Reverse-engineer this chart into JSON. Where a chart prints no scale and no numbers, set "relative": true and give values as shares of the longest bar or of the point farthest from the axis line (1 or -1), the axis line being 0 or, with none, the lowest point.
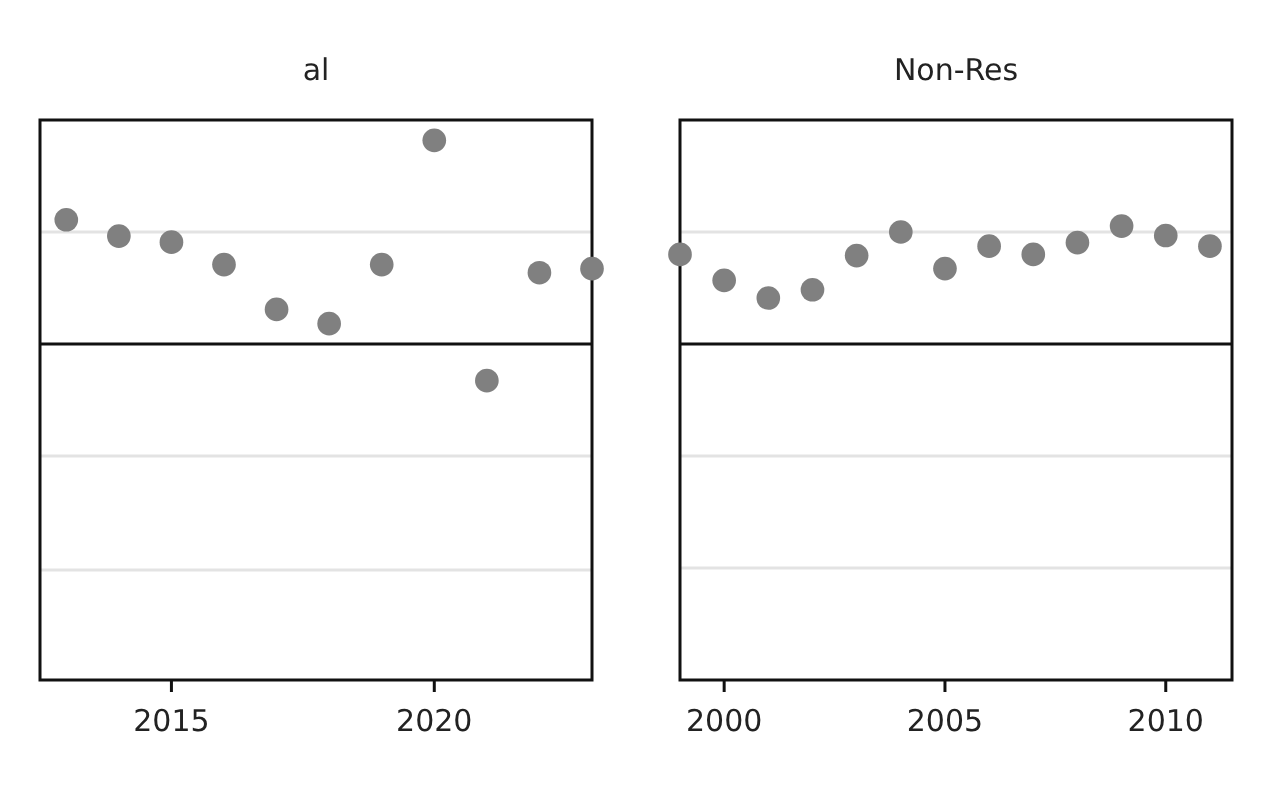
{
  "chart_data": [
    {
      "type": "scatter",
      "title": "al",
      "relative": true,
      "marker": "circle",
      "tick_labels": "x",
      "x": [
        2013,
        2014,
        2015,
        2016,
        2017,
        2018,
        2019,
        2020,
        2021,
        2022,
        2023
      ],
      "xlim": [
        2012.5,
        2023
      ],
      "xticks": [
        2015,
        2020
      ],
      "ref_lines": [
        {
          "axis": "y",
          "value": 0.55,
          "color": "#e3e3e3"
        },
        {
          "axis": "y",
          "value": -0.55,
          "color": "#e3e3e3"
        },
        {
          "axis": "y",
          "value": -1.11,
          "color": "#e3e3e3"
        }
      ],
      "series": [
        {
          "color": "#808080",
          "values": [
            0.61,
            0.53,
            0.5,
            0.39,
            0.17,
            0.1,
            0.39,
            1,
            -0.18,
            0.35,
            0.37
          ]
        }
      ]
    },
    {
      "type": "scatter",
      "title": "Non-Res",
      "relative": true,
      "marker": "circle",
      "tick_labels": "x",
      "x": [
        1999,
        2000,
        2001,
        2002,
        2003,
        2004,
        2005,
        2006,
        2007,
        2008,
        2009,
        2010,
        2011
      ],
      "xlim": [
        1999,
        2011.5
      ],
      "xticks": [
        2000,
        2005,
        2010
      ],
      "ref_lines": [
        {
          "axis": "y",
          "value": 0.95,
          "color": "#e3e3e3"
        },
        {
          "axis": "y",
          "value": -0.95,
          "color": "#e3e3e3"
        },
        {
          "axis": "y",
          "value": -1.9,
          "color": "#e3e3e3"
        }
      ],
      "series": [
        {
          "color": "#808080",
          "values": [
            0.76,
            0.54,
            0.39,
            0.46,
            0.75,
            0.95,
            0.64,
            0.83,
            0.76,
            0.86,
            1,
            0.92,
            0.83
          ]
        }
      ]
    }
  ]
}
